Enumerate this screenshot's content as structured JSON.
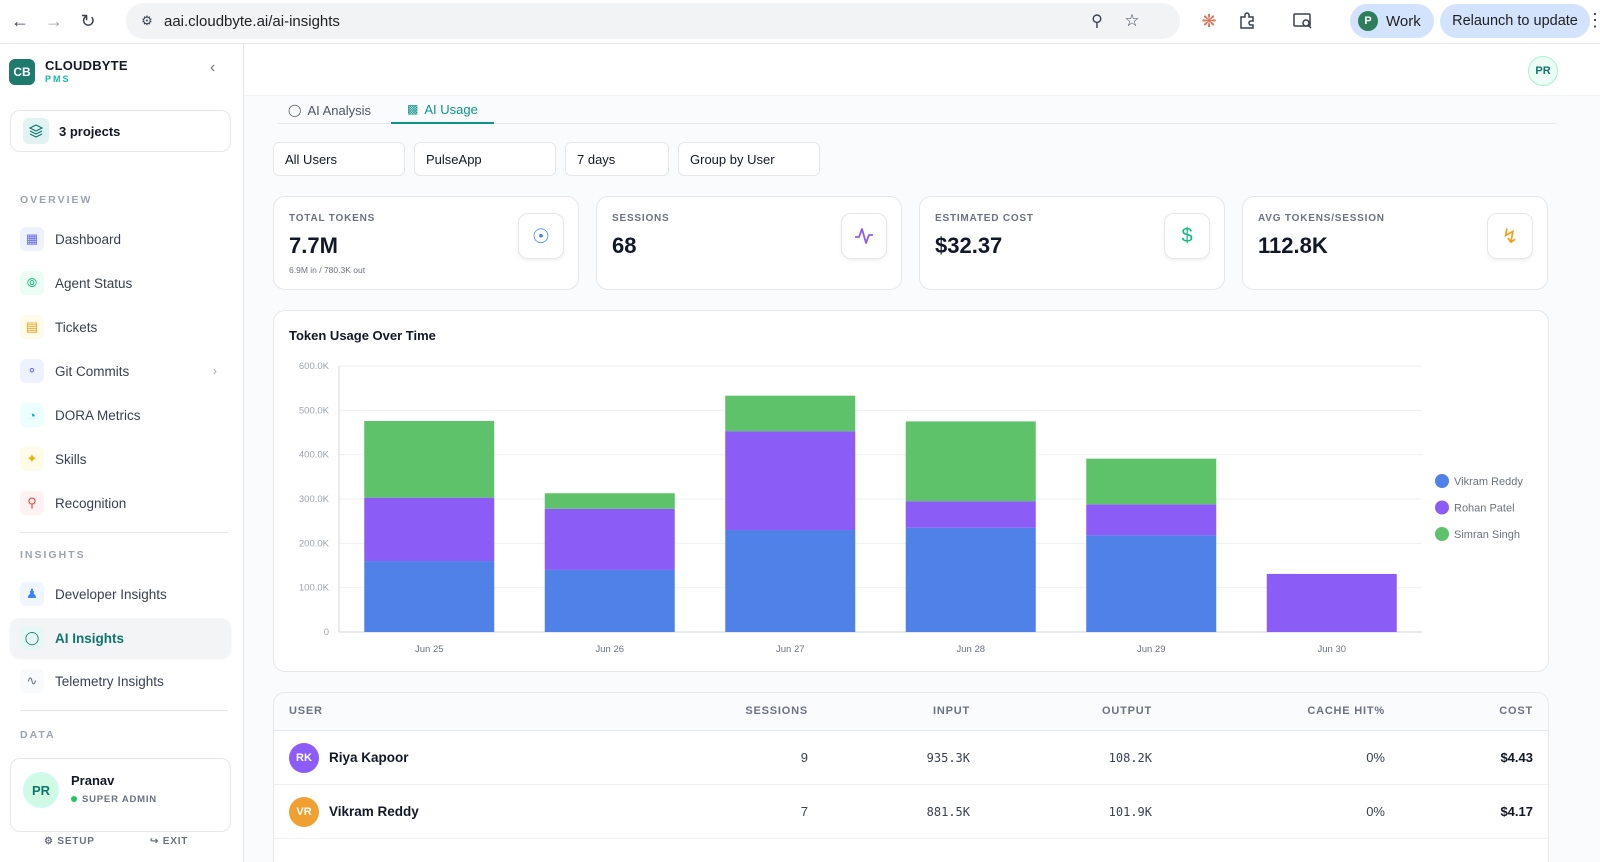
{
  "browser": {
    "url": "aai.cloudbyte.ai/ai-insights",
    "profile_initial": "P",
    "profile_label": "Work",
    "relaunch_label": "Relaunch to update"
  },
  "sidebar": {
    "logo_text": "CB",
    "brand": "CLOUDBYTE",
    "brand_sub": "PMS",
    "projects_label": "3 projects",
    "overview_label": "OVERVIEW",
    "insights_label": "INSIGHTS",
    "data_label": "DATA",
    "overview_items": [
      {
        "label": "Dashboard"
      },
      {
        "label": "Agent Status"
      },
      {
        "label": "Tickets"
      },
      {
        "label": "Git Commits"
      },
      {
        "label": "DORA Metrics"
      },
      {
        "label": "Skills"
      },
      {
        "label": "Recognition"
      }
    ],
    "insights_items": [
      {
        "label": "Developer Insights"
      },
      {
        "label": "AI Insights"
      },
      {
        "label": "Telemetry Insights"
      }
    ],
    "user": {
      "initials": "PR",
      "name": "Pranav",
      "role": "SUPER ADMIN",
      "setup_label": "SETUP",
      "exit_label": "EXIT"
    }
  },
  "header": {
    "avatar_initials": "PR"
  },
  "tabs": [
    {
      "label": "AI Analysis"
    },
    {
      "label": "AI Usage"
    }
  ],
  "filters": {
    "users": "All Users",
    "app": "PulseApp",
    "range": "7 days",
    "group": "Group by User"
  },
  "stats": [
    {
      "label": "TOTAL TOKENS",
      "value": "7.7M",
      "sub": "6.9M in / 780.3K out",
      "color": "#3b82f6"
    },
    {
      "label": "SESSIONS",
      "value": "68",
      "color": "#8b5cf6"
    },
    {
      "label": "ESTIMATED COST",
      "value": "$32.37",
      "color": "#10b981"
    },
    {
      "label": "AVG TOKENS/SESSION",
      "value": "112.8K",
      "color": "#f59e0b"
    }
  ],
  "chart_data": {
    "type": "bar",
    "stacked": true,
    "title": "Token Usage Over Time",
    "categories": [
      "Jun 25",
      "Jun 26",
      "Jun 27",
      "Jun 28",
      "Jun 29",
      "Jun 30"
    ],
    "series": [
      {
        "name": "Vikram Reddy",
        "color": "#4f81e9",
        "values": [
          160000,
          140000,
          230000,
          235000,
          218000,
          0
        ]
      },
      {
        "name": "Rohan Patel",
        "color": "#8b5cf6",
        "values": [
          143000,
          138000,
          223000,
          60000,
          70000,
          131000
        ]
      },
      {
        "name": "Simran Singh",
        "color": "#5ec26a",
        "values": [
          173000,
          35000,
          80000,
          180000,
          103000,
          0
        ]
      }
    ],
    "y_ticks": [
      "0",
      "100.0K",
      "200.0K",
      "300.0K",
      "400.0K",
      "500.0K",
      "600.0K"
    ],
    "ylim": [
      0,
      600000
    ],
    "grid": true,
    "legend": "right"
  },
  "table": {
    "headers": {
      "user": "USER",
      "sessions": "SESSIONS",
      "input": "INPUT",
      "output": "OUTPUT",
      "cache": "CACHE HIT%",
      "cost": "COST"
    },
    "rows": [
      {
        "initials": "RK",
        "name": "Riya Kapoor",
        "sessions": "9",
        "input": "935.3K",
        "output": "108.2K",
        "cache": "0%",
        "cost": "$4.43",
        "avatar_color": "#8b5cf6"
      },
      {
        "initials": "VR",
        "name": "Vikram Reddy",
        "sessions": "7",
        "input": "881.5K",
        "output": "101.9K",
        "cache": "0%",
        "cost": "$4.17",
        "avatar_color": "#f0a030"
      }
    ]
  }
}
